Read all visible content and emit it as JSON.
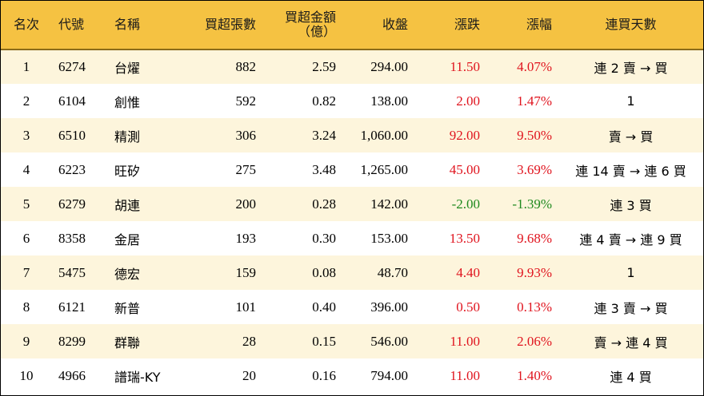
{
  "headers": {
    "rank": "名次",
    "code": "代號",
    "name": "名稱",
    "net_buy_lots": "買超張數",
    "net_buy_amount_line1": "買超金額",
    "net_buy_amount_line2": "（億）",
    "close": "收盤",
    "change": "漲跌",
    "change_pct": "漲幅",
    "streak": "連買天數"
  },
  "colors": {
    "header_bg": "#f5c242",
    "row_alt_bg": "#fdf5dc",
    "up": "#e0141e",
    "down": "#1f8a1f"
  },
  "rows": [
    {
      "rank": "1",
      "code": "6274",
      "name": "台燿",
      "lots": "882",
      "amount": "2.59",
      "close": "294.00",
      "change": "11.50",
      "pct": "4.07%",
      "streak": "連 2 賣 → 買",
      "dir": "up"
    },
    {
      "rank": "2",
      "code": "6104",
      "name": "創惟",
      "lots": "592",
      "amount": "0.82",
      "close": "138.00",
      "change": "2.00",
      "pct": "1.47%",
      "streak": "1",
      "dir": "up"
    },
    {
      "rank": "3",
      "code": "6510",
      "name": "精測",
      "lots": "306",
      "amount": "3.24",
      "close": "1,060.00",
      "change": "92.00",
      "pct": "9.50%",
      "streak": "賣 → 買",
      "dir": "up"
    },
    {
      "rank": "4",
      "code": "6223",
      "name": "旺矽",
      "lots": "275",
      "amount": "3.48",
      "close": "1,265.00",
      "change": "45.00",
      "pct": "3.69%",
      "streak": "連 14 賣 → 連 6 買",
      "dir": "up"
    },
    {
      "rank": "5",
      "code": "6279",
      "name": "胡連",
      "lots": "200",
      "amount": "0.28",
      "close": "142.00",
      "change": "-2.00",
      "pct": "-1.39%",
      "streak": "連 3 買",
      "dir": "down"
    },
    {
      "rank": "6",
      "code": "8358",
      "name": "金居",
      "lots": "193",
      "amount": "0.30",
      "close": "153.00",
      "change": "13.50",
      "pct": "9.68%",
      "streak": "連 4 賣 → 連 9 買",
      "dir": "up"
    },
    {
      "rank": "7",
      "code": "5475",
      "name": "德宏",
      "lots": "159",
      "amount": "0.08",
      "close": "48.70",
      "change": "4.40",
      "pct": "9.93%",
      "streak": "1",
      "dir": "up"
    },
    {
      "rank": "8",
      "code": "6121",
      "name": "新普",
      "lots": "101",
      "amount": "0.40",
      "close": "396.00",
      "change": "0.50",
      "pct": "0.13%",
      "streak": "連 3 賣 → 買",
      "dir": "up"
    },
    {
      "rank": "9",
      "code": "8299",
      "name": "群聯",
      "lots": "28",
      "amount": "0.15",
      "close": "546.00",
      "change": "11.00",
      "pct": "2.06%",
      "streak": "賣 → 連 4 買",
      "dir": "up"
    },
    {
      "rank": "10",
      "code": "4966",
      "name": "譜瑞-KY",
      "lots": "20",
      "amount": "0.16",
      "close": "794.00",
      "change": "11.00",
      "pct": "1.40%",
      "streak": "連 4 買",
      "dir": "up"
    }
  ]
}
